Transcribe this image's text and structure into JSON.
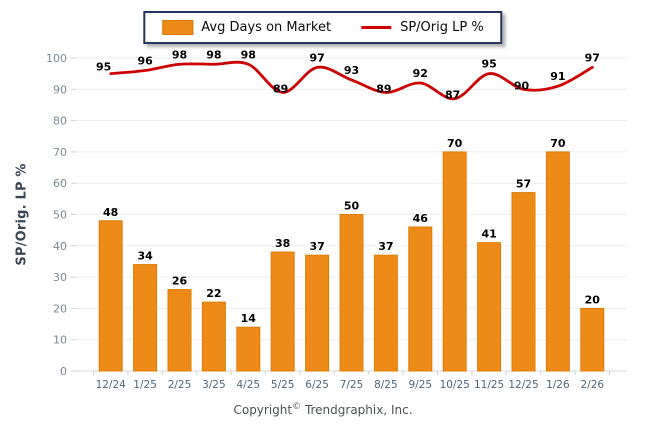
{
  "legend": {
    "items": [
      {
        "label": "Avg Days on Market",
        "type": "bar",
        "color": "#EE8A17"
      },
      {
        "label": "SP/Orig LP %",
        "type": "line",
        "color": "#CC0000"
      }
    ]
  },
  "y_axis": {
    "title": "SP/Orig. LP %"
  },
  "footer": {
    "copyright_prefix": "Copyright",
    "copyright_symbol": "©",
    "copyright_company": "Trendgraphix, Inc."
  },
  "chart_data": {
    "type": "bar+line",
    "categories": [
      "12/24",
      "1/25",
      "2/25",
      "3/25",
      "4/25",
      "5/25",
      "6/25",
      "7/25",
      "8/25",
      "9/25",
      "10/25",
      "11/25",
      "12/25",
      "1/26",
      "2/26"
    ],
    "series": [
      {
        "name": "Avg Days on Market",
        "type": "bar",
        "color": "#EE8A17",
        "values": [
          48,
          34,
          26,
          22,
          14,
          38,
          37,
          50,
          37,
          46,
          70,
          41,
          57,
          70,
          20
        ]
      },
      {
        "name": "SP/Orig LP %",
        "type": "line",
        "color": "#CC0000",
        "values": [
          95,
          96,
          98,
          98,
          98,
          89,
          97,
          93,
          89,
          92,
          87,
          95,
          90,
          91,
          97
        ]
      }
    ],
    "title": "",
    "xlabel": "",
    "ylabel": "SP/Orig. LP %",
    "ylim": [
      0,
      100
    ],
    "yticks": [
      0,
      10,
      20,
      30,
      40,
      50,
      60,
      70,
      80,
      90,
      100
    ],
    "grid": true,
    "data_labels": true,
    "legend_position": "top-center",
    "colors": {
      "bar_fill": "#EE8A17",
      "bar_border": "#DD7D06",
      "line": "#CC0000",
      "gridline": "#EDEDED",
      "axis_line": "#D7D7D7",
      "y_tick_text": "#7D8893",
      "x_tick_text": "#51667A",
      "value_label_text": "#000000"
    }
  }
}
